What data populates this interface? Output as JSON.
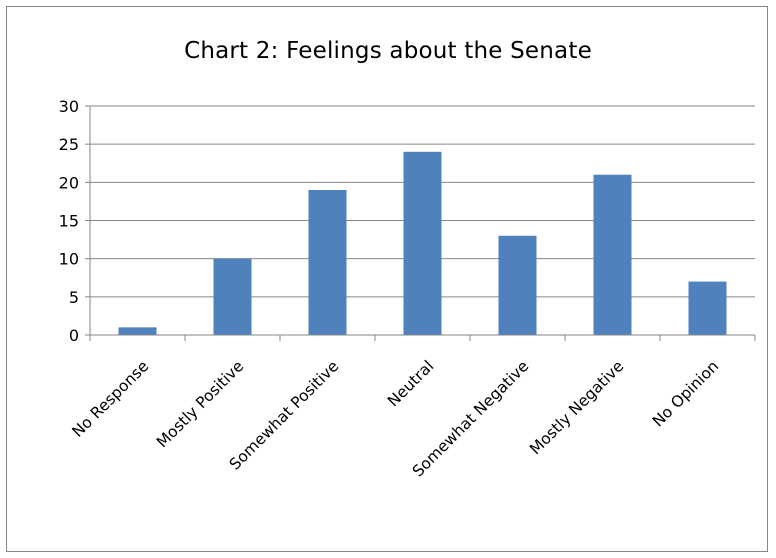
{
  "chart_data": {
    "type": "bar",
    "title": "Chart 2: Feelings about the Senate",
    "categories": [
      "No Response",
      "Mostly Positive",
      "Somewhat Positive",
      "Neutral",
      "Somewhat Negative",
      "Mostly Negative",
      "No Opinion"
    ],
    "values": [
      1,
      10,
      19,
      24,
      13,
      21,
      7
    ],
    "ylim": [
      0,
      30
    ],
    "yticks": [
      0,
      5,
      10,
      15,
      20,
      25,
      30
    ],
    "grid": true,
    "legend": "none",
    "bar_color": "#4f81bd",
    "grid_color": "#868686"
  }
}
